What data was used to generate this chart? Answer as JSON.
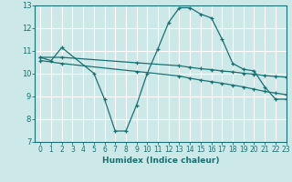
{
  "xlabel": "Humidex (Indice chaleur)",
  "xlim": [
    -0.5,
    23
  ],
  "ylim": [
    7,
    13
  ],
  "yticks": [
    7,
    8,
    9,
    10,
    11,
    12,
    13
  ],
  "xticks": [
    0,
    1,
    2,
    3,
    4,
    5,
    6,
    7,
    8,
    9,
    10,
    11,
    12,
    13,
    14,
    15,
    16,
    17,
    18,
    19,
    20,
    21,
    22,
    23
  ],
  "bg_color": "#cde8e8",
  "grid_color": "#ffffff",
  "line_color": "#1a7070",
  "curve1_x": [
    0,
    1,
    2,
    5,
    6,
    7,
    8,
    9,
    10,
    11,
    12,
    13,
    14,
    15,
    16,
    17,
    18,
    19,
    20,
    21,
    22,
    23
  ],
  "curve1_y": [
    10.72,
    10.57,
    11.15,
    10.02,
    8.88,
    7.48,
    7.48,
    8.62,
    10.02,
    11.1,
    12.25,
    12.9,
    12.9,
    12.62,
    12.45,
    11.52,
    10.45,
    10.2,
    10.12,
    9.42,
    8.88,
    8.88
  ],
  "curve2_x": [
    0,
    2,
    9,
    13,
    14,
    15,
    16,
    17,
    18,
    19,
    20,
    21,
    22,
    23
  ],
  "curve2_y": [
    10.72,
    10.72,
    10.48,
    10.35,
    10.28,
    10.22,
    10.18,
    10.12,
    10.08,
    10.02,
    9.98,
    9.92,
    9.88,
    9.85
  ],
  "curve3_x": [
    0,
    2,
    9,
    13,
    14,
    15,
    16,
    17,
    18,
    19,
    20,
    21,
    22,
    23
  ],
  "curve3_y": [
    10.58,
    10.45,
    10.1,
    9.9,
    9.8,
    9.72,
    9.65,
    9.58,
    9.5,
    9.42,
    9.32,
    9.22,
    9.15,
    9.08
  ]
}
